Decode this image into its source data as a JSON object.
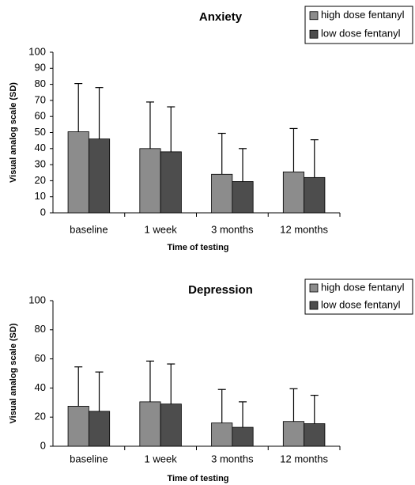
{
  "chart_data": [
    {
      "type": "bar",
      "title": "Anxiety",
      "x_label": "Time of testing",
      "y_label": "Visual analog scale (SD)",
      "categories": [
        "baseline",
        "1 week",
        "3 months",
        "12 months"
      ],
      "series": [
        {
          "name": "high dose fentanyl",
          "color": "#8c8c8c",
          "values": [
            50.5,
            40,
            24,
            25.5
          ],
          "errors": [
            30,
            29,
            25.5,
            27
          ]
        },
        {
          "name": "low dose fentanyl",
          "color": "#4d4d4d",
          "values": [
            46,
            38,
            19.5,
            22
          ],
          "errors": [
            32,
            28,
            20.5,
            23.5
          ]
        }
      ],
      "ylim": [
        0,
        100
      ],
      "yticks": [
        0,
        10,
        20,
        30,
        40,
        50,
        60,
        70,
        80,
        90,
        100
      ],
      "grid": false,
      "legend": "upper right"
    },
    {
      "type": "bar",
      "title": "Depression",
      "x_label": "Time of testing",
      "y_label": "Visual analog scale (SD)",
      "categories": [
        "baseline",
        "1 week",
        "3 months",
        "12 months"
      ],
      "series": [
        {
          "name": "high dose fentanyl",
          "color": "#8c8c8c",
          "values": [
            27.5,
            30.5,
            16,
            17
          ],
          "errors": [
            27,
            28,
            23,
            22.5
          ]
        },
        {
          "name": "low dose fentanyl",
          "color": "#4d4d4d",
          "values": [
            24,
            29,
            13,
            15.5
          ],
          "errors": [
            27,
            27.5,
            17.5,
            19.5
          ]
        }
      ],
      "ylim": [
        0,
        100
      ],
      "yticks": [
        0,
        20,
        40,
        60,
        80,
        100
      ],
      "grid": false,
      "legend": "upper right"
    }
  ]
}
